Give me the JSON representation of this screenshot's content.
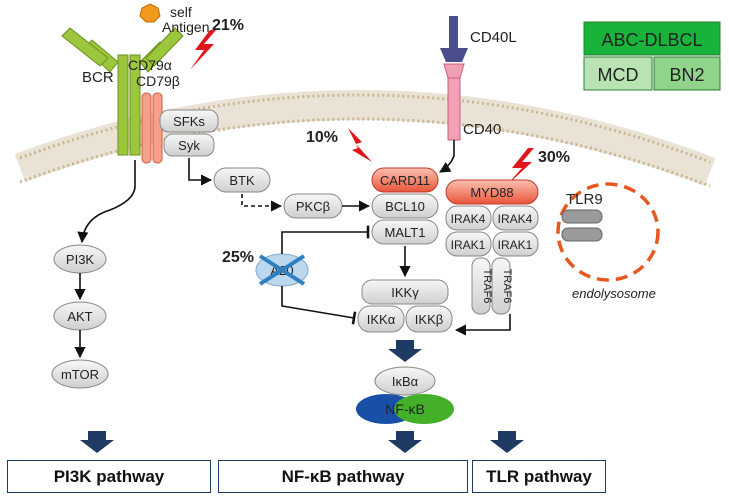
{
  "legend": {
    "title": "ABC-DLBCL",
    "subtypes": [
      "MCD",
      "BN2"
    ],
    "colors": {
      "title": "#17b33a",
      "subtype_left": "#b9e3b2",
      "subtype_right": "#8fd48a"
    }
  },
  "receptors": {
    "self_antigen": [
      "self",
      "Antigen"
    ],
    "bcr": "BCR",
    "cd79a": "CD79α",
    "cd79b": "CD79β",
    "cd40l": "CD40L",
    "cd40": "CD40",
    "tlr9": "TLR9",
    "endolysosome": "endolysosome"
  },
  "mutation_rates": {
    "cd79": "21%",
    "card11": "10%",
    "myd88": "30%",
    "a20": "25%"
  },
  "proteins": {
    "sfks": "SFKs",
    "syk": "Syk",
    "btk": "BTK",
    "pkcb": "PKCβ",
    "card11": "CARD11",
    "bcl10": "BCL10",
    "malt1": "MALT1",
    "myd88": "MYD88",
    "irak4_left": "IRAK4",
    "irak4_right": "IRAK4",
    "irak1_left": "IRAK1",
    "irak1_right": "IRAK1",
    "traf6_left": "TRAF6",
    "traf6_right": "TRAF6",
    "a20": "A20",
    "ikkg": "IKKγ",
    "ikka": "IKKα",
    "ikkb": "IKKβ",
    "ikba": "IκBα",
    "nfkb": "NF-κB",
    "pi3k": "PI3K",
    "akt": "AKT",
    "mtor": "mTOR"
  },
  "pathways": {
    "pi3k": "PI3K pathway",
    "nfkb": "NF-κB pathway",
    "tlr": "TLR pathway"
  },
  "colors": {
    "bcr_green": "#9cc63b",
    "mutant_red": "#e8553a",
    "cd40_pink": "#f2a0b4",
    "cd40l_purple": "#4a4e8c",
    "membrane": "#e6dccb",
    "node_gray": "#e4e4e4",
    "ikk_blue": "#2f7fc1",
    "nfkb_blue": "#1a4fa8",
    "nfkb_green": "#44b02a",
    "lightning": "#e0161b",
    "arrow_navy": "#1f3b63",
    "endolysosome": "#e8571e"
  }
}
